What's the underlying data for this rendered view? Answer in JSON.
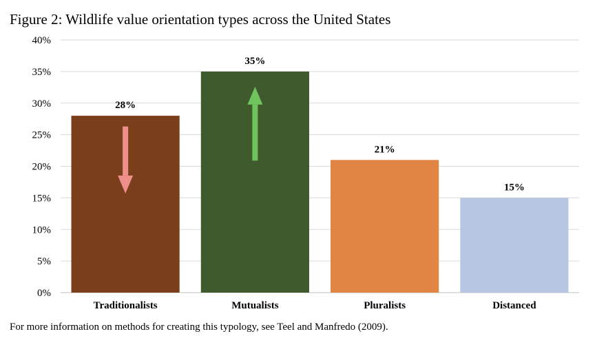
{
  "title": "Figure 2: Wildlife value orientation types across the United States",
  "note": "For more information on methods for creating this typology, see Teel and Manfredo (2009).",
  "chart_data": {
    "type": "bar",
    "categories": [
      "Traditionalists",
      "Mutualists",
      "Pluralists",
      "Distanced"
    ],
    "values": [
      28,
      35,
      21,
      15
    ],
    "data_labels": [
      "28%",
      "35%",
      "21%",
      "15%"
    ],
    "bar_colors": [
      "#7a3f1a",
      "#3f5a2d",
      "#e08544",
      "#b7c6e3"
    ],
    "ylim": [
      0,
      40
    ],
    "yticks": [
      0,
      5,
      10,
      15,
      20,
      25,
      30,
      35,
      40
    ],
    "ytick_labels": [
      "0%",
      "5%",
      "10%",
      "15%",
      "20%",
      "25%",
      "30%",
      "35%",
      "40%"
    ],
    "grid": "horizontal",
    "legend": "none",
    "xlabel": "",
    "ylabel": "",
    "annotations": [
      {
        "category": "Traditionalists",
        "shape": "arrow",
        "direction": "down",
        "color": "#ef8f8c",
        "from": 26.3,
        "to": 15.7
      },
      {
        "category": "Mutualists",
        "shape": "arrow",
        "direction": "up",
        "color": "#70c45d",
        "from": 20.9,
        "to": 32.6
      }
    ]
  }
}
